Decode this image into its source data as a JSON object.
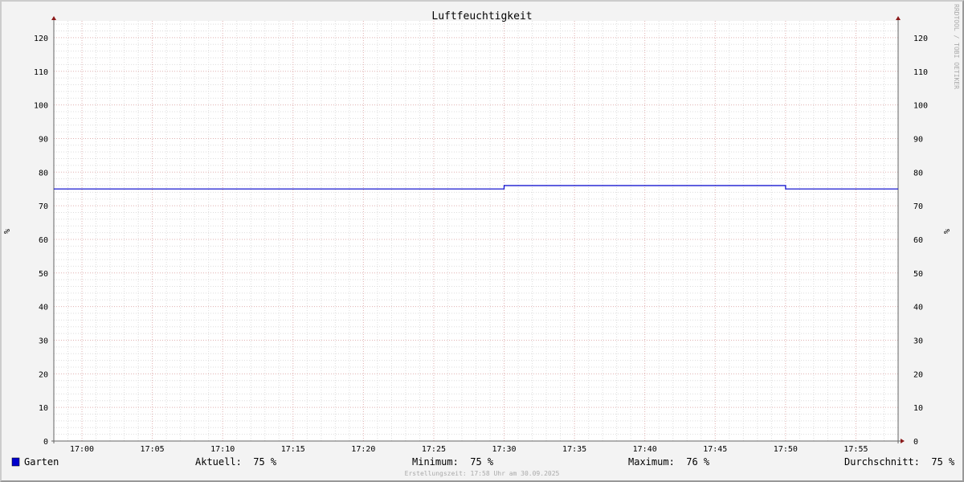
{
  "chart_data": {
    "type": "line",
    "title": "Luftfeuchtigkeit",
    "ylabel": "%",
    "ylabel_right": "%",
    "ylim": [
      0,
      125
    ],
    "yticks": [
      0,
      10,
      20,
      30,
      40,
      50,
      60,
      70,
      80,
      90,
      100,
      110,
      120
    ],
    "xlim": [
      "16:58",
      "17:58"
    ],
    "xticks": [
      "17:00",
      "17:05",
      "17:10",
      "17:15",
      "17:20",
      "17:25",
      "17:30",
      "17:35",
      "17:40",
      "17:45",
      "17:50",
      "17:55"
    ],
    "grid": true,
    "series": [
      {
        "name": "Garten",
        "color": "#0000cc",
        "points": [
          [
            "16:58",
            75
          ],
          [
            "17:30",
            75
          ],
          [
            "17:30",
            76
          ],
          [
            "17:50",
            76
          ],
          [
            "17:50",
            75
          ],
          [
            "17:58",
            75
          ]
        ]
      }
    ],
    "watermark": "RRDTOOL / TOBI OETIKER"
  },
  "legend": {
    "series_name": "Garten",
    "color": "#0000cc",
    "current": "Aktuell:  75 %",
    "minimum": "Minimum:  75 %",
    "maximum": "Maximum:  76 %",
    "average": "Durchschnitt:  75 %"
  },
  "footer": "Erstellungszeit: 17:58 Uhr am 30.09.2025"
}
